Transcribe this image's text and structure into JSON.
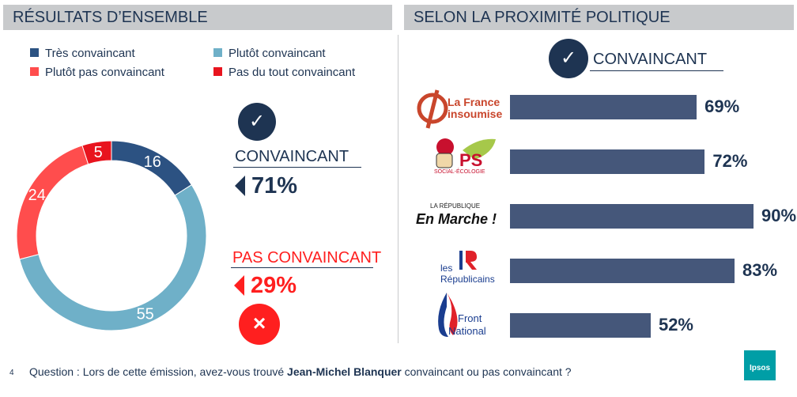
{
  "headers": {
    "left": "RÉSULTATS D’ENSEMBLE",
    "right": "SELON LA PROXIMITÉ POLITIQUE"
  },
  "legend": [
    {
      "label": "Très convaincant",
      "color": "#2c5282"
    },
    {
      "label": "Plutôt convaincant",
      "color": "#6fb0c8"
    },
    {
      "label": "Plutôt pas convaincant",
      "color": "#ff4d4d"
    },
    {
      "label": "Pas du tout convaincant",
      "color": "#e8141e"
    }
  ],
  "summary": {
    "convaincant_label": "CONVAINCANT",
    "convaincant_value": "71%",
    "pas_convaincant_label": "PAS CONVAINCANT",
    "pas_convaincant_value": "29%",
    "check_icon": "✓",
    "cross_icon": "×"
  },
  "right_title": "CONVAINCANT",
  "logos": {
    "lfi_line1": "La France",
    "lfi_line2": "insoumise",
    "ps_main": "PS",
    "ps_sub": "SOCIAL-ÉCOLOGIE",
    "lrem_line1": "LA RÉPUBLIQUE",
    "lrem_line2": "En Marche !",
    "lr_line1": "les",
    "lr_line2": "Républicains",
    "fn_line1": "Front",
    "fn_line2": "National"
  },
  "chart_data": [
    {
      "type": "pie",
      "categories": [
        "Très convaincant",
        "Plutôt convaincant",
        "Plutôt pas convaincant",
        "Pas du tout convaincant"
      ],
      "values": [
        16,
        55,
        24,
        5
      ],
      "colors": [
        "#2c5282",
        "#6fb0c8",
        "#ff4d4d",
        "#e8141e"
      ],
      "donut": true
    },
    {
      "type": "bar",
      "orientation": "horizontal",
      "categories": [
        "La France insoumise",
        "PS",
        "En Marche !",
        "Les Républicains",
        "Front National"
      ],
      "values": [
        69,
        72,
        90,
        83,
        52
      ],
      "value_labels": [
        "69%",
        "72%",
        "90%",
        "83%",
        "52%"
      ],
      "xlim": [
        0,
        100
      ],
      "color": "#45577a"
    }
  ],
  "footer": {
    "page_number": "4",
    "question_prefix": "Question : Lors de cette émission, avez-vous trouvé ",
    "question_bold": "Jean-Michel Blanquer",
    "question_suffix": " convaincant ou pas convaincant ?",
    "brand": "Ipsos"
  }
}
